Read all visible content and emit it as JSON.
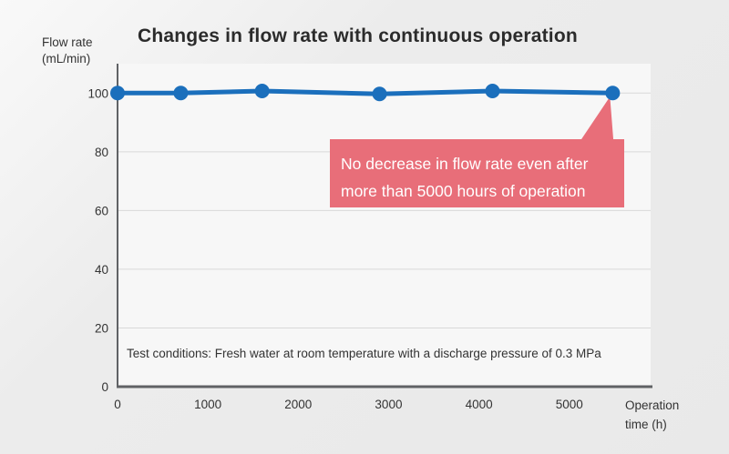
{
  "title": "Changes in flow rate with continuous operation",
  "y_axis_label": {
    "line1": "Flow rate",
    "line2": "(mL/min)"
  },
  "x_axis_label": {
    "line1": "Operation",
    "line2": "time (h)"
  },
  "test_conditions": "Test conditions: Fresh water at room temperature with a discharge pressure of 0.3 MPa",
  "callout": {
    "line1": "No decrease in flow rate even after",
    "line2": "more than 5000 hours of operation",
    "background": "#e86e79",
    "text_color": "#ffffff"
  },
  "chart_data": {
    "type": "line",
    "title": "Changes in flow rate with continuous operation",
    "xlabel": "Operation time (h)",
    "ylabel": "Flow rate (mL/min)",
    "x": [
      0,
      700,
      1600,
      2900,
      4150,
      5480
    ],
    "y": [
      100,
      100,
      100.7,
      99.7,
      100.7,
      100
    ],
    "xticks": [
      0,
      1000,
      2000,
      3000,
      4000,
      5000
    ],
    "yticks": [
      0,
      20,
      40,
      60,
      80,
      100
    ],
    "xlim": [
      0,
      5900
    ],
    "ylim": [
      0,
      110
    ],
    "grid": "horizontal-only",
    "legend": "none",
    "annotation": "No decrease in flow rate even after more than 5000 hours of operation",
    "line_color": "#1b6fbc",
    "marker": "filled-circle",
    "axis_color": "#606265",
    "grid_color": "#d8d8d8",
    "plot_bg": "#f7f7f7",
    "page_bg": "#eaeaea"
  }
}
